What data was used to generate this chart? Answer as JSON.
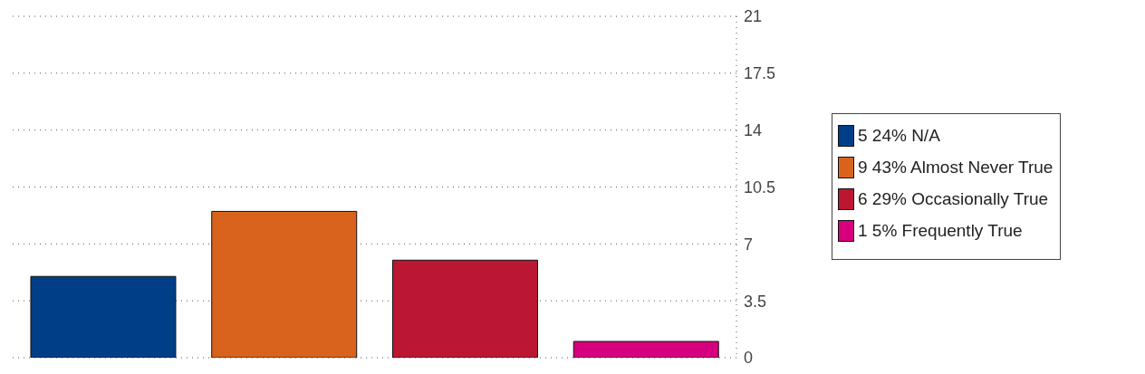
{
  "chart_data": {
    "type": "bar",
    "categories": [
      null,
      null,
      null,
      null
    ],
    "stacked": true,
    "series": [
      {
        "name": "5 24% N/A",
        "color": "#003f87",
        "values": [
          5,
          null,
          null,
          null
        ]
      },
      {
        "name": "9 43% Almost Never True",
        "color": "#d9631c",
        "values": [
          null,
          9,
          null,
          null
        ]
      },
      {
        "name": "6 29% Occasionally True",
        "color": "#bb1733",
        "values": [
          null,
          null,
          6,
          null
        ]
      },
      {
        "name": "1 5% Frequently True",
        "color": "#d6007e",
        "values": [
          null,
          null,
          null,
          1
        ]
      }
    ],
    "ylim": [
      0,
      21
    ],
    "yticks": [
      0,
      3.5,
      7,
      10.5,
      14,
      17.5,
      21
    ],
    "grid": "y",
    "legend": "right"
  }
}
